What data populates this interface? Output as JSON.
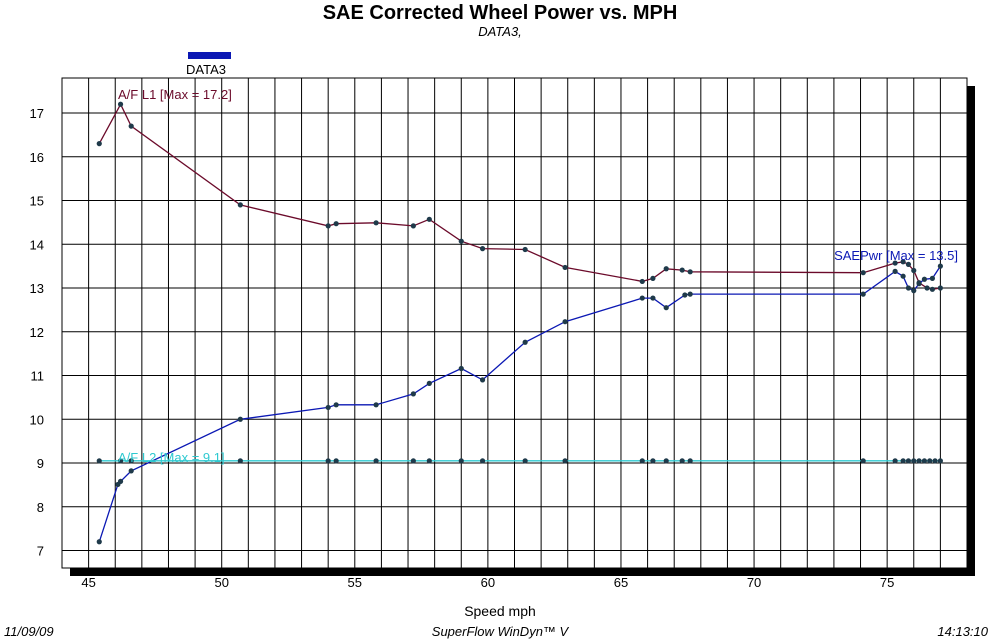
{
  "header": {
    "title": "SAE Corrected Wheel Power vs. MPH",
    "subtitle": "DATA3,"
  },
  "legend": {
    "label": "DATA3",
    "color": "#0b18b4"
  },
  "footer": {
    "date": "11/09/09",
    "software": "SuperFlow WinDyn™ V",
    "time": "14:13:10"
  },
  "chart_data": {
    "type": "line",
    "title": "SAE Corrected Wheel Power vs. MPH",
    "subtitle": "DATA3,",
    "xlabel": "Speed   mph",
    "ylabel": "",
    "xlim": [
      44,
      78
    ],
    "ylim": [
      6.6,
      17.8
    ],
    "x_ticks": [
      45,
      50,
      55,
      60,
      65,
      70,
      75
    ],
    "y_ticks": [
      7,
      8,
      9,
      10,
      11,
      12,
      13,
      14,
      15,
      16,
      17
    ],
    "grid": true,
    "legend_position": "top-left",
    "series": [
      {
        "name": "A/F L1",
        "color": "#6b0a2a",
        "annotation": "A/F L1 [Max = 17.2]",
        "points": [
          [
            45.4,
            16.3
          ],
          [
            46.2,
            17.2
          ],
          [
            46.6,
            16.7
          ],
          [
            50.7,
            14.9
          ],
          [
            54.0,
            14.42
          ],
          [
            54.3,
            14.47
          ],
          [
            55.8,
            14.49
          ],
          [
            57.2,
            14.42
          ],
          [
            57.8,
            14.57
          ],
          [
            59.0,
            14.07
          ],
          [
            59.8,
            13.9
          ],
          [
            61.4,
            13.88
          ],
          [
            62.9,
            13.47
          ],
          [
            65.8,
            13.15
          ],
          [
            66.2,
            13.22
          ],
          [
            66.7,
            13.44
          ],
          [
            67.3,
            13.41
          ],
          [
            67.6,
            13.37
          ],
          [
            74.1,
            13.35
          ],
          [
            75.3,
            13.57
          ],
          [
            75.6,
            13.6
          ],
          [
            75.8,
            13.54
          ],
          [
            76.0,
            13.4
          ],
          [
            76.2,
            13.12
          ],
          [
            76.5,
            13.0
          ],
          [
            76.7,
            12.97
          ],
          [
            77.0,
            13.0
          ]
        ]
      },
      {
        "name": "SAEPwr",
        "color": "#0b18b4",
        "annotation": "SAEPwr [Max = 13.5]",
        "points": [
          [
            45.4,
            7.2
          ],
          [
            46.1,
            8.51
          ],
          [
            46.2,
            8.58
          ],
          [
            46.6,
            8.82
          ],
          [
            50.7,
            10.0
          ],
          [
            54.0,
            10.27
          ],
          [
            54.3,
            10.33
          ],
          [
            55.8,
            10.33
          ],
          [
            57.2,
            10.58
          ],
          [
            57.8,
            10.82
          ],
          [
            59.0,
            11.16
          ],
          [
            59.8,
            10.9
          ],
          [
            61.4,
            11.76
          ],
          [
            62.9,
            12.23
          ],
          [
            65.8,
            12.77
          ],
          [
            66.2,
            12.77
          ],
          [
            66.7,
            12.55
          ],
          [
            67.4,
            12.84
          ],
          [
            67.6,
            12.86
          ],
          [
            74.1,
            12.86
          ],
          [
            75.3,
            13.38
          ],
          [
            75.6,
            13.27
          ],
          [
            75.8,
            13.0
          ],
          [
            76.0,
            12.94
          ],
          [
            76.2,
            13.1
          ],
          [
            76.4,
            13.2
          ],
          [
            76.7,
            13.22
          ],
          [
            77.0,
            13.5
          ]
        ]
      },
      {
        "name": "A/F L2",
        "color": "#2ec9d0",
        "annotation": "A/F L2 [Max = 9.1]",
        "points": [
          [
            45.4,
            9.05
          ],
          [
            46.2,
            9.05
          ],
          [
            46.6,
            9.05
          ],
          [
            50.7,
            9.05
          ],
          [
            54.0,
            9.05
          ],
          [
            54.3,
            9.05
          ],
          [
            55.8,
            9.05
          ],
          [
            57.2,
            9.05
          ],
          [
            57.8,
            9.05
          ],
          [
            59.0,
            9.05
          ],
          [
            59.8,
            9.05
          ],
          [
            61.4,
            9.05
          ],
          [
            62.9,
            9.05
          ],
          [
            65.8,
            9.05
          ],
          [
            66.2,
            9.05
          ],
          [
            66.7,
            9.05
          ],
          [
            67.3,
            9.05
          ],
          [
            67.6,
            9.05
          ],
          [
            74.1,
            9.05
          ],
          [
            75.3,
            9.05
          ],
          [
            75.6,
            9.05
          ],
          [
            75.8,
            9.05
          ],
          [
            76.0,
            9.05
          ],
          [
            76.2,
            9.05
          ],
          [
            76.4,
            9.05
          ],
          [
            76.6,
            9.05
          ],
          [
            76.8,
            9.05
          ],
          [
            77.0,
            9.05
          ]
        ]
      }
    ]
  }
}
